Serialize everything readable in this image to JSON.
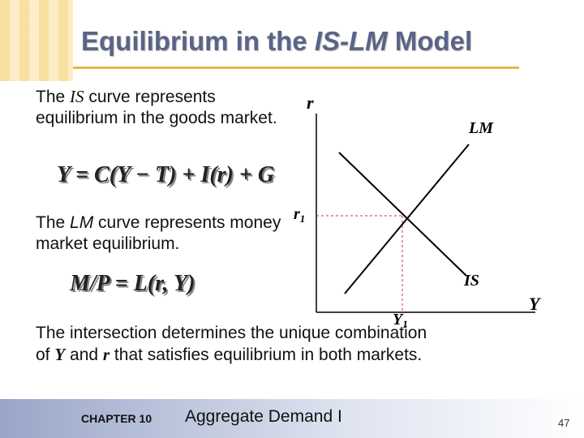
{
  "header": {
    "title": [
      "Equilibrium in the ",
      "IS-LM",
      " Model"
    ]
  },
  "body": {
    "is_text": [
      "The ",
      "IS",
      " curve represents equilibrium in the goods market."
    ],
    "is_equation": "Y = C(Y − T) + I(r) + G",
    "lm_text": [
      "The ",
      "LM",
      " curve represents money market equilibrium."
    ],
    "lm_equation": "M/P = L(r, Y)",
    "conclusion": [
      "The intersection determines the unique combination of ",
      "Y",
      " and ",
      "r",
      " that satisfies equilibrium in both markets."
    ]
  },
  "graph": {
    "y_axis": "r",
    "x_axis": "Y",
    "lm_label": "LM",
    "is_label": "IS",
    "r_eq": [
      "r",
      "1"
    ],
    "y_eq": [
      "Y",
      "1"
    ]
  },
  "footer": {
    "chapter": "CHAPTER 10",
    "subject": "Aggregate Demand I",
    "page": "47"
  }
}
